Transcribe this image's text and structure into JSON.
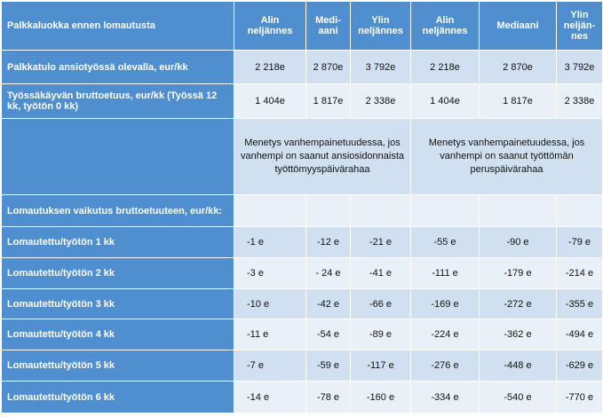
{
  "header": {
    "label": "Palkkaluokka  ennen lomautusta",
    "cols": [
      "Alin neljännes",
      "Medi-aani",
      "Ylin neljännes",
      "Alin neljännes",
      "Mediaani",
      "Ylin neljän-nes"
    ]
  },
  "income": {
    "label": "Palkkatulo ansiotyössä olevalla,  eur/kk",
    "values": [
      "2 218e",
      "2 870e",
      "3 792e",
      "2 218e",
      "2 870e",
      "3 792e"
    ]
  },
  "benefit": {
    "label": "Työssäkäyvän  bruttoetuus, eur/kk (Työssä  12 kk, työtön 0 kk)",
    "values": [
      "1 404e",
      "1 817e",
      "2 338e",
      "1 404e",
      "1 817e",
      "2 338e"
    ]
  },
  "notes": {
    "left": "Menetys vanhempainetuudessa, jos vanhempi on saanut ansiosidonnaista työttömyyspäivärahaa",
    "right": "Menetys vanhempainetuudessa, jos vanhempi on saanut työttömän peruspäivärahaa"
  },
  "effect_label": "Lomautuksen vaikutus bruttoetuuteen, eur/kk:",
  "rows": [
    {
      "label": "Lomautettu/työtön 1 kk",
      "values": [
        "-1 e",
        "-12 e",
        "-21 e",
        "-55 e",
        "-90 e",
        "-79 e"
      ]
    },
    {
      "label": "Lomautettu/työtön 2 kk",
      "values": [
        "-3 e",
        "- 24 e",
        "-41 e",
        "-111 e",
        "-179 e",
        "-214 e"
      ]
    },
    {
      "label": "Lomautettu/työtön 3 kk",
      "values": [
        "-10 e",
        "-42 e",
        "-66 e",
        "-169 e",
        "-272 e",
        "-355 e"
      ]
    },
    {
      "label": "Lomautettu/työtön 4 kk",
      "values": [
        "-11 e",
        "-54 e",
        "-89 e",
        "-224 e",
        "-362 e",
        "-494 e"
      ]
    },
    {
      "label": "Lomautettu/työtön 5 kk",
      "values": [
        "-7 e",
        "-59 e",
        "-117 e",
        "-276 e",
        "-448 e",
        "-629 e"
      ]
    },
    {
      "label": "Lomautettu/työtön 6 kk",
      "values": [
        "-14 e",
        "-78 e",
        "-160 e",
        "-334 e",
        "-540 e",
        "-770 e"
      ]
    }
  ]
}
